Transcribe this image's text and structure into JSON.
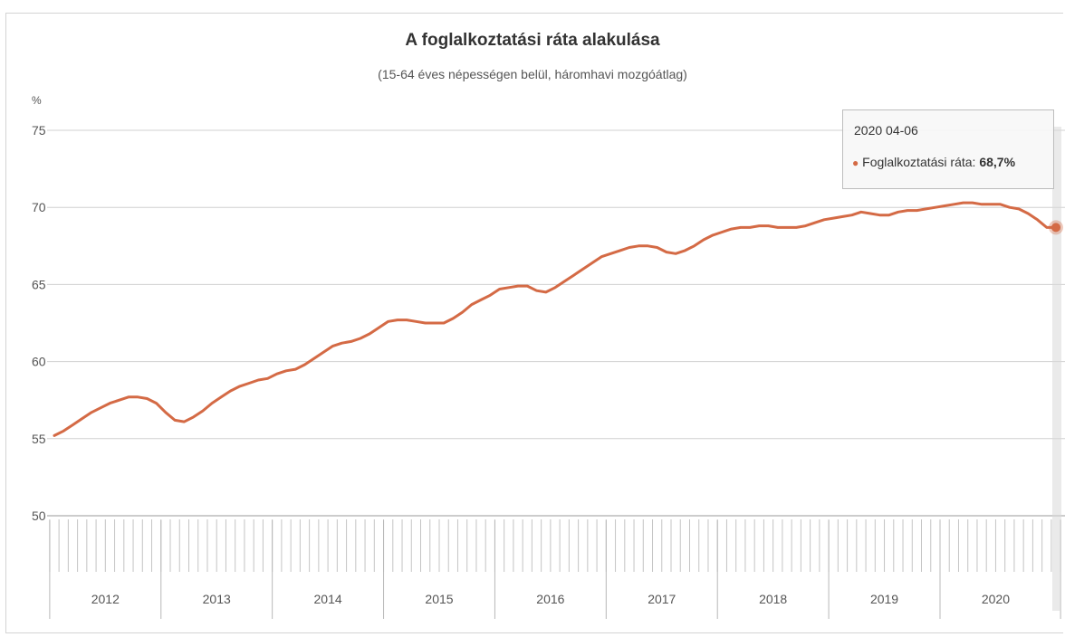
{
  "chart_data": {
    "type": "line",
    "title": "A foglalkoztatási ráta alakulása",
    "subtitle": "(15-64 éves népességen belül, háromhavi mozgóátlag)",
    "ylabel": "%",
    "ylim": [
      50,
      75
    ],
    "yticks": [
      50,
      55,
      60,
      65,
      70,
      75
    ],
    "grid": true,
    "line_color": "#d46a45",
    "x_start": "2012 01-03",
    "x_end": "2020 04-06",
    "year_labels": [
      "2012",
      "2013",
      "2014",
      "2015",
      "2016",
      "2017",
      "2018",
      "2019",
      "2020"
    ],
    "series": [
      {
        "values": [
          55.2,
          55.5,
          55.9,
          56.3,
          56.7,
          57.0,
          57.3,
          57.5,
          57.7,
          57.7,
          57.6,
          57.3,
          56.7,
          56.2,
          56.1,
          56.4,
          56.8,
          57.3,
          57.7,
          58.1,
          58.4,
          58.6,
          58.8,
          58.9,
          59.2,
          59.4,
          59.5,
          59.8,
          60.2,
          60.6,
          61.0,
          61.2,
          61.3,
          61.5,
          61.8,
          62.2,
          62.6,
          62.7,
          62.7,
          62.6,
          62.5,
          62.5,
          62.5,
          62.8,
          63.2,
          63.7,
          64.0,
          64.3,
          64.7,
          64.8,
          64.9,
          64.9,
          64.6,
          64.5,
          64.8,
          65.2,
          65.6,
          66.0,
          66.4,
          66.8,
          67.0,
          67.2,
          67.4,
          67.5,
          67.5,
          67.4,
          67.1,
          67.0,
          67.2,
          67.5,
          67.9,
          68.2,
          68.4,
          68.6,
          68.7,
          68.7,
          68.8,
          68.8,
          68.7,
          68.7,
          68.7,
          68.8,
          69.0,
          69.2,
          69.3,
          69.4,
          69.5,
          69.7,
          69.6,
          69.5,
          69.5,
          69.7,
          69.8,
          69.8,
          69.9,
          70.0,
          70.1,
          70.2,
          70.3,
          70.3,
          70.2,
          70.2,
          70.2,
          70.0,
          69.9,
          69.6,
          69.2,
          68.7,
          68.7
        ]
      }
    ],
    "tooltip": {
      "date": "2020 04-06",
      "series_name": "Foglalkoztatási ráta:",
      "value": "68,7%",
      "bullet": "●"
    }
  }
}
